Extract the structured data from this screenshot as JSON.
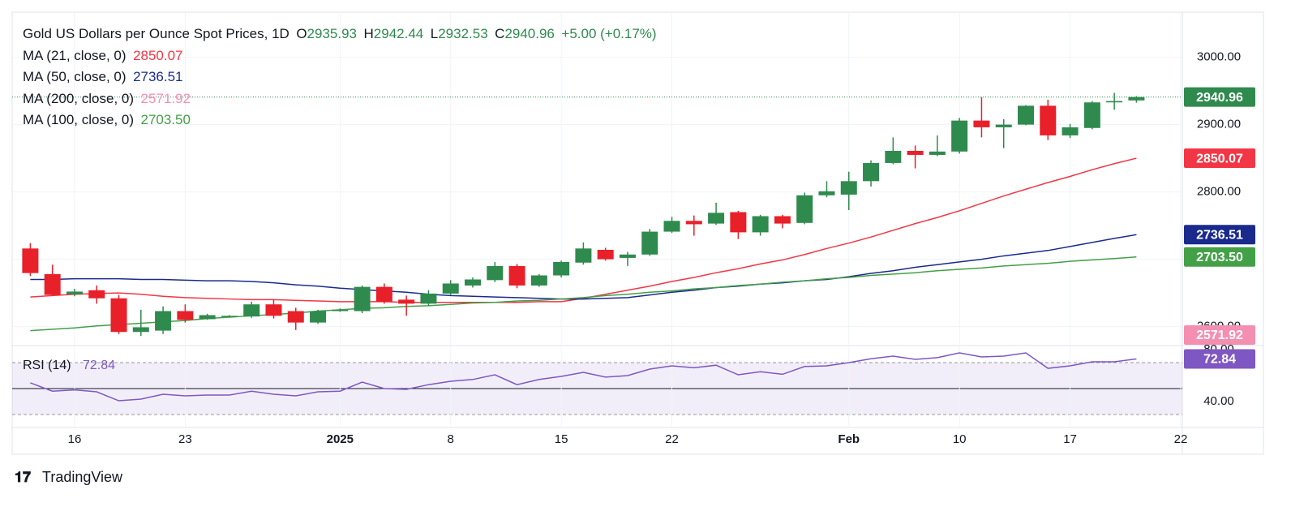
{
  "chart_data": {
    "type": "candlestick",
    "title": "Gold US Dollars per Ounce Spot Prices, 1D",
    "ohlc_labels": [
      "O",
      "H",
      "L",
      "C"
    ],
    "change_label": "+5.00 (+0.17%)",
    "up_color": "#2f8a4e",
    "down_color": "#e8202a",
    "categories": [
      null,
      null,
      "16",
      null,
      null,
      null,
      null,
      "23",
      null,
      null,
      null,
      null,
      null,
      null,
      "2025",
      null,
      null,
      null,
      null,
      "8",
      null,
      null,
      null,
      null,
      "15",
      null,
      null,
      null,
      null,
      "22",
      null,
      null,
      null,
      null,
      null,
      null,
      null,
      "Feb",
      null,
      null,
      null,
      null,
      "10",
      null,
      null,
      null,
      null,
      "17",
      null,
      null,
      null,
      null,
      "22"
    ],
    "open": [
      2716,
      2678,
      2648,
      2654,
      2642,
      2592,
      2594,
      2623,
      2611,
      2615,
      2615,
      2633,
      2623,
      2606,
      2623,
      2623,
      2659,
      2640,
      2634,
      2649,
      2661,
      2669,
      2690,
      2661,
      2676,
      2695,
      2714,
      2702,
      2707,
      2741,
      2757,
      2753,
      2770,
      2740,
      2764,
      2754,
      2795,
      2796,
      2816,
      2843,
      2861,
      2855,
      2860,
      2906,
      2896,
      2900,
      2928,
      2884,
      2895,
      2933,
      2935.93,
      null,
      null
    ],
    "high": [
      2724,
      2692,
      2656,
      2661,
      2647,
      2625,
      2630,
      2633,
      2619,
      2617,
      2637,
      2640,
      2628,
      2625,
      2627,
      2661,
      2664,
      2646,
      2654,
      2669,
      2673,
      2696,
      2693,
      2678,
      2698,
      2725,
      2717,
      2711,
      2745,
      2763,
      2765,
      2784,
      2772,
      2766,
      2766,
      2799,
      2816,
      2830,
      2847,
      2881,
      2869,
      2884,
      2910,
      2941,
      2908,
      2929,
      2937,
      2901,
      2935,
      2947,
      2942.44,
      null,
      null
    ],
    "low": [
      2675,
      2646,
      2645,
      2634,
      2589,
      2586,
      2589,
      2606,
      2610,
      2614,
      2613,
      2612,
      2595,
      2604,
      2622,
      2620,
      2634,
      2616,
      2631,
      2647,
      2658,
      2666,
      2657,
      2659,
      2673,
      2692,
      2698,
      2690,
      2705,
      2739,
      2735,
      2751,
      2730,
      2735,
      2746,
      2752,
      2792,
      2773,
      2808,
      2841,
      2835,
      2853,
      2857,
      2881,
      2865,
      2899,
      2877,
      2880,
      2893,
      2922,
      2932.53,
      null,
      null
    ],
    "close": [
      2679.5,
      2647,
      2652,
      2642,
      2592,
      2599,
      2623,
      2610,
      2617,
      2616,
      2633,
      2616,
      2606,
      2623,
      2625,
      2659,
      2637,
      2634,
      2649,
      2664,
      2670,
      2690,
      2661,
      2676,
      2696,
      2716,
      2700,
      2707,
      2741,
      2757,
      2752,
      2769,
      2740,
      2764,
      2753,
      2795,
      2801,
      2816,
      2843,
      2861,
      2855,
      2860,
      2906,
      2896,
      2900,
      2928,
      2884,
      2896,
      2933,
      2935,
      2940.96,
      null,
      null
    ],
    "series": [
      {
        "name": "MA (21, close, 0)",
        "color": "#f23645",
        "last_label": "2850.07",
        "values": [
          2644,
          2646,
          2648,
          2649,
          2650,
          2648,
          2645,
          2643,
          2642,
          2641,
          2640,
          2640,
          2639,
          2638,
          2637,
          2637,
          2637,
          2636,
          2636,
          2636,
          2636,
          2636,
          2636,
          2637,
          2637,
          2642,
          2648,
          2654,
          2660,
          2667,
          2673,
          2680,
          2686,
          2693,
          2699,
          2707,
          2716,
          2724,
          2733,
          2743,
          2753,
          2762,
          2772,
          2783,
          2794,
          2804,
          2814,
          2823,
          2833,
          2842,
          2850.07,
          null,
          null
        ]
      },
      {
        "name": "MA (50, close, 0)",
        "color": "#1a2a8c",
        "last_label": "2736.51",
        "values": [
          2670,
          2670,
          2671,
          2671,
          2671,
          2670,
          2670,
          2669,
          2668,
          2668,
          2667,
          2665,
          2662,
          2660,
          2657,
          2655,
          2653,
          2651,
          2648,
          2646,
          2645,
          2644,
          2643,
          2642,
          2641,
          2641,
          2642,
          2643,
          2647,
          2651,
          2654,
          2658,
          2660,
          2663,
          2665,
          2668,
          2670,
          2674,
          2679,
          2683,
          2688,
          2692,
          2696,
          2700,
          2705,
          2709,
          2713,
          2719,
          2725,
          2731,
          2736.51,
          null,
          null
        ]
      },
      {
        "name": "MA (200, close, 0)",
        "color": "#f48fb1",
        "last_label": "2571.92",
        "values": [
          null,
          null,
          null,
          null,
          null,
          null,
          null,
          null,
          null,
          null,
          null,
          null,
          null,
          null,
          null,
          null,
          null,
          null,
          null,
          null,
          null,
          null,
          null,
          null,
          null,
          null,
          null,
          null,
          null,
          null,
          null,
          null,
          null,
          null,
          null,
          null,
          null,
          null,
          null,
          null,
          null,
          null,
          null,
          null,
          null,
          null,
          null,
          null,
          null,
          null,
          2571.92,
          null,
          null
        ]
      },
      {
        "name": "MA (100, close, 0)",
        "color": "#43a047",
        "last_label": "2703.50",
        "values": [
          2594,
          2596,
          2598,
          2601,
          2603,
          2605,
          2607,
          2609,
          2612,
          2614,
          2616,
          2618,
          2620,
          2623,
          2625,
          2627,
          2628,
          2630,
          2631,
          2633,
          2635,
          2636,
          2638,
          2639,
          2641,
          2643,
          2646,
          2648,
          2651,
          2653,
          2656,
          2658,
          2661,
          2663,
          2666,
          2668,
          2671,
          2673,
          2676,
          2678,
          2680,
          2683,
          2685,
          2687,
          2690,
          2692,
          2694,
          2697,
          2699,
          2701,
          2703.5,
          null,
          null
        ]
      }
    ],
    "ylim": [
      2573,
      3067
    ],
    "yticks": [
      {
        "value": 2600,
        "label": "2600.00"
      },
      {
        "value": 2700,
        "label": "2700.00"
      },
      {
        "value": 2800,
        "label": "2800.00"
      },
      {
        "value": 2900,
        "label": "2900.00"
      },
      {
        "value": 3000,
        "label": "3000.00"
      }
    ],
    "grid": true,
    "rsi": {
      "name": "RSI (14)",
      "color": "#7e57c2",
      "ylim": [
        20,
        82.5
      ],
      "bands": [
        70,
        30
      ],
      "midline": 50,
      "yticks": [
        {
          "value": 80,
          "label": "80.00"
        },
        {
          "value": 40,
          "label": "40.00"
        }
      ],
      "values": [
        54.4,
        48,
        49,
        47.5,
        40.6,
        41.9,
        45.6,
        44.4,
        45,
        45,
        48,
        45.6,
        44.4,
        47.5,
        48,
        55,
        50,
        49.4,
        53,
        55.6,
        57,
        60.6,
        53,
        57,
        59.4,
        62.5,
        58.8,
        60,
        65,
        67.5,
        66,
        68,
        60.6,
        63,
        61,
        67,
        67.5,
        70,
        73,
        75,
        72.5,
        73.8,
        77.5,
        74.4,
        75,
        77.5,
        65.6,
        67.5,
        70.6,
        70.6,
        72.84,
        null,
        null
      ]
    },
    "watermark": "TradingView"
  }
}
